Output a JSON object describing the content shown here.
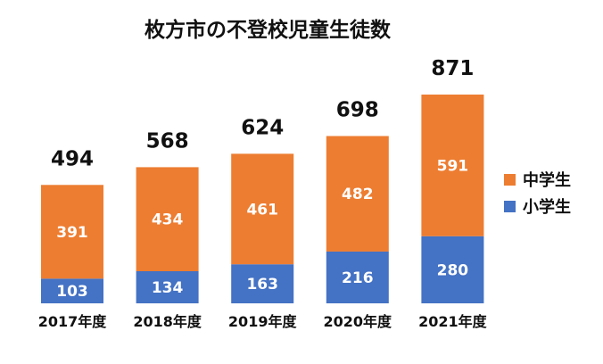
{
  "chart_data": {
    "type": "bar",
    "stacked": true,
    "title": "枚方市の不登校児童生徒数",
    "categories": [
      "2017年度",
      "2018年度",
      "2019年度",
      "2020年度",
      "2021年度"
    ],
    "series": [
      {
        "name": "小学生",
        "values": [
          103,
          134,
          163,
          216,
          280
        ],
        "color": "#4472C4"
      },
      {
        "name": "中学生",
        "values": [
          391,
          434,
          461,
          482,
          591
        ],
        "color": "#ED7D31"
      }
    ],
    "totals": [
      494,
      568,
      624,
      698,
      871
    ],
    "legend": "right",
    "grid": false
  }
}
